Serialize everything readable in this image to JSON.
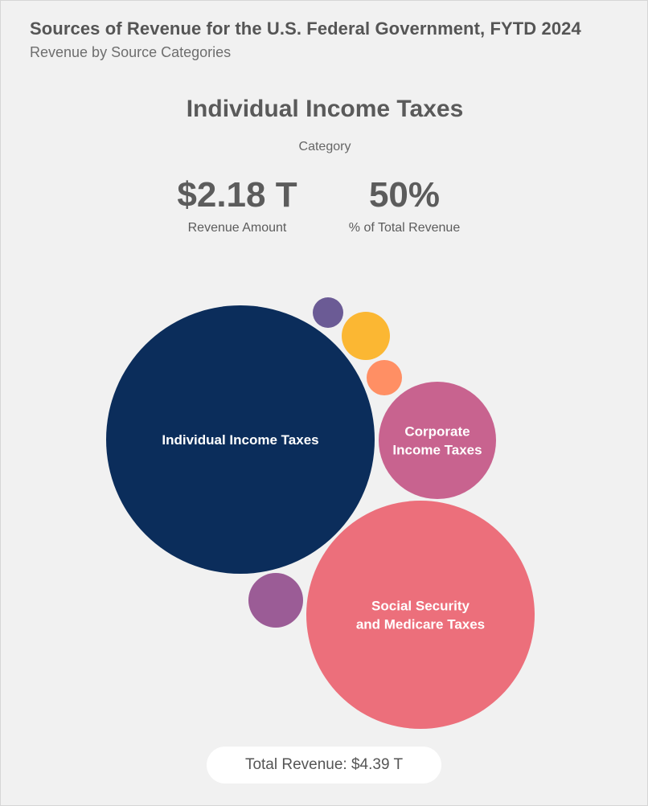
{
  "header": {
    "title": "Sources of Revenue for the U.S. Federal Government, FYTD 2024",
    "subtitle": "Revenue by Source Categories"
  },
  "selection": {
    "category_name": "Individual Income Taxes",
    "category_label": "Category",
    "amount_value": "$2.18 T",
    "amount_label": "Revenue Amount",
    "percent_value": "50%",
    "percent_label": "% of Total Revenue"
  },
  "footer": {
    "total_text": "Total Revenue: $4.39 T"
  },
  "chart_data": {
    "type": "bubble",
    "title": "Sources of Revenue for the U.S. Federal Government, FYTD 2024",
    "subtitle": "Revenue by Source Categories",
    "total_revenue_trillions": 4.39,
    "series": [
      {
        "name": "Individual Income Taxes",
        "lines": [
          "Individual Income Taxes"
        ],
        "value_share": 0.5,
        "color": "#0b2d5b",
        "labeled": true
      },
      {
        "name": "Social Security and Medicare Taxes",
        "lines": [
          "Social Security",
          "and Medicare Taxes"
        ],
        "value_share": 0.36,
        "color": "#ec6f7b",
        "labeled": true
      },
      {
        "name": "Corporate Income Taxes",
        "lines": [
          "Corporate",
          "Income Taxes"
        ],
        "value_share": 0.095,
        "color": "#c8638f",
        "labeled": true
      },
      {
        "name": "",
        "lines": [],
        "value_share": 0.017,
        "color": "#9b5c96",
        "labeled": false
      },
      {
        "name": "",
        "lines": [],
        "value_share": 0.016,
        "color": "#fbb733",
        "labeled": false
      },
      {
        "name": "",
        "lines": [],
        "value_share": 0.008,
        "color": "#ff8f64",
        "labeled": false
      },
      {
        "name": "",
        "lines": [],
        "value_share": 0.006,
        "color": "#6b5b95",
        "labeled": false
      }
    ]
  }
}
